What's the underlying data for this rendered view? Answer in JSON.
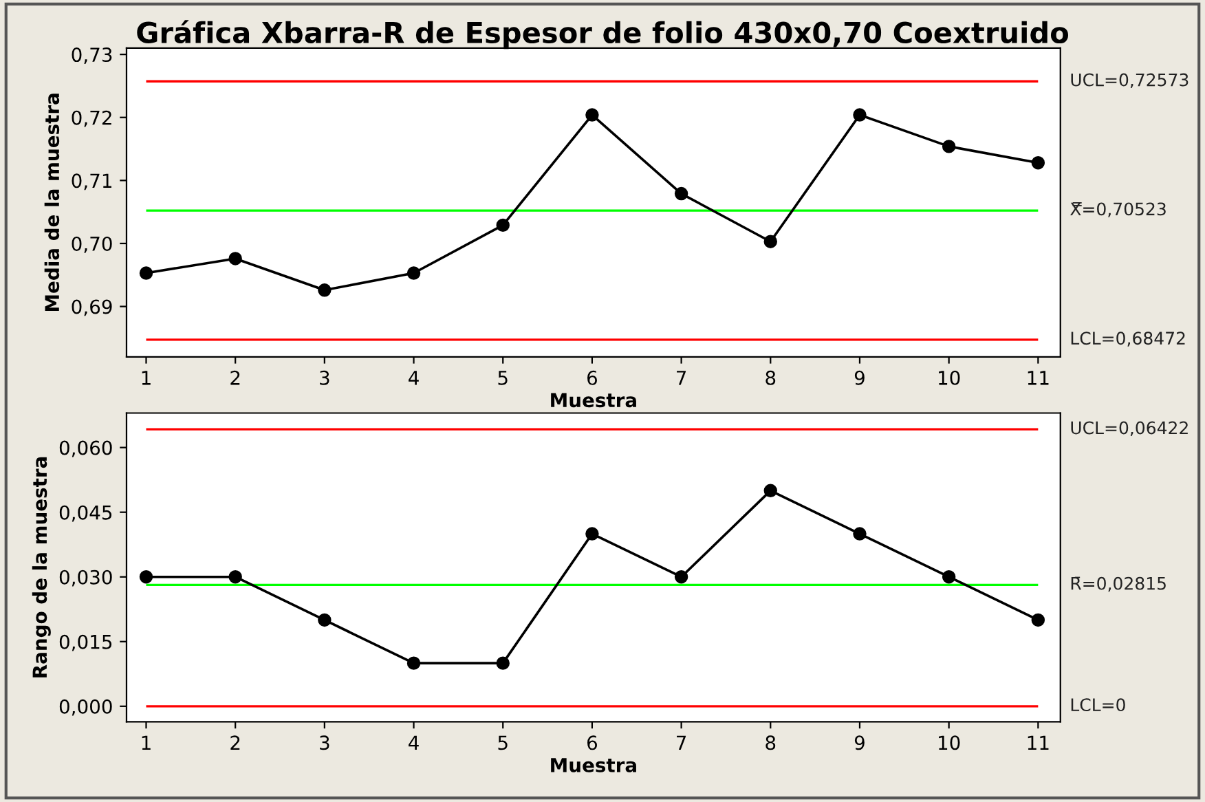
{
  "chart_data": [
    {
      "type": "line",
      "title": "Gráfica Xbarra-R de Espesor de folio 430x0,70 Coextruido",
      "xlabel": "Muestra",
      "ylabel": "Media de la muestra",
      "marker": "circle",
      "line_style": "solid",
      "grid": false,
      "legend": false,
      "x": [
        1,
        2,
        3,
        4,
        5,
        6,
        7,
        8,
        9,
        10,
        11
      ],
      "series": [
        {
          "color": "#000000",
          "values": [
            0.6953,
            0.6976,
            0.6926,
            0.6953,
            0.7029,
            0.7204,
            0.7079,
            0.7003,
            0.7204,
            0.7154,
            0.7128
          ]
        }
      ],
      "xlim": [
        0.78,
        11.25
      ],
      "xticks": [
        1,
        2,
        3,
        4,
        5,
        6,
        7,
        8,
        9,
        10,
        11
      ],
      "ylim": [
        0.682,
        0.731
      ],
      "yticks": [
        {
          "value": 0.69,
          "label": "0,69"
        },
        {
          "value": 0.7,
          "label": "0,70"
        },
        {
          "value": 0.71,
          "label": "0,71"
        },
        {
          "value": 0.72,
          "label": "0,72"
        },
        {
          "value": 0.73,
          "label": "0,73"
        }
      ],
      "ref_lines": [
        {
          "axis": "y",
          "value": 0.72573,
          "label": "UCL=0,72573",
          "color": "#ff0000"
        },
        {
          "axis": "y",
          "value": 0.70523,
          "label": "X̿=0,70523",
          "color": "#00ff00"
        },
        {
          "axis": "y",
          "value": 0.68472,
          "label": "LCL=0,68472",
          "color": "#ff0000"
        }
      ]
    },
    {
      "type": "line",
      "xlabel": "Muestra",
      "ylabel": "Rango de la muestra",
      "marker": "circle",
      "line_style": "solid",
      "grid": false,
      "legend": false,
      "x": [
        1,
        2,
        3,
        4,
        5,
        6,
        7,
        8,
        9,
        10,
        11
      ],
      "series": [
        {
          "color": "#000000",
          "values": [
            0.03,
            0.03,
            0.02,
            0.01,
            0.01,
            0.04,
            0.03,
            0.05,
            0.04,
            0.03,
            0.02
          ]
        }
      ],
      "xlim": [
        0.78,
        11.25
      ],
      "xticks": [
        1,
        2,
        3,
        4,
        5,
        6,
        7,
        8,
        9,
        10,
        11
      ],
      "ylim": [
        -0.0036,
        0.068
      ],
      "yticks": [
        {
          "value": 0,
          "label": "0,000"
        },
        {
          "value": 0.015,
          "label": "0,015"
        },
        {
          "value": 0.03,
          "label": "0,030"
        },
        {
          "value": 0.045,
          "label": "0,045"
        },
        {
          "value": 0.06,
          "label": "0,060"
        }
      ],
      "ref_lines": [
        {
          "axis": "y",
          "value": 0.06422,
          "label": "UCL=0,06422",
          "color": "#ff0000"
        },
        {
          "axis": "y",
          "value": 0.02815,
          "label": "R̄=0,02815",
          "color": "#00ff00"
        },
        {
          "axis": "y",
          "value": 0,
          "label": "LCL=0",
          "color": "#ff0000"
        }
      ]
    }
  ]
}
